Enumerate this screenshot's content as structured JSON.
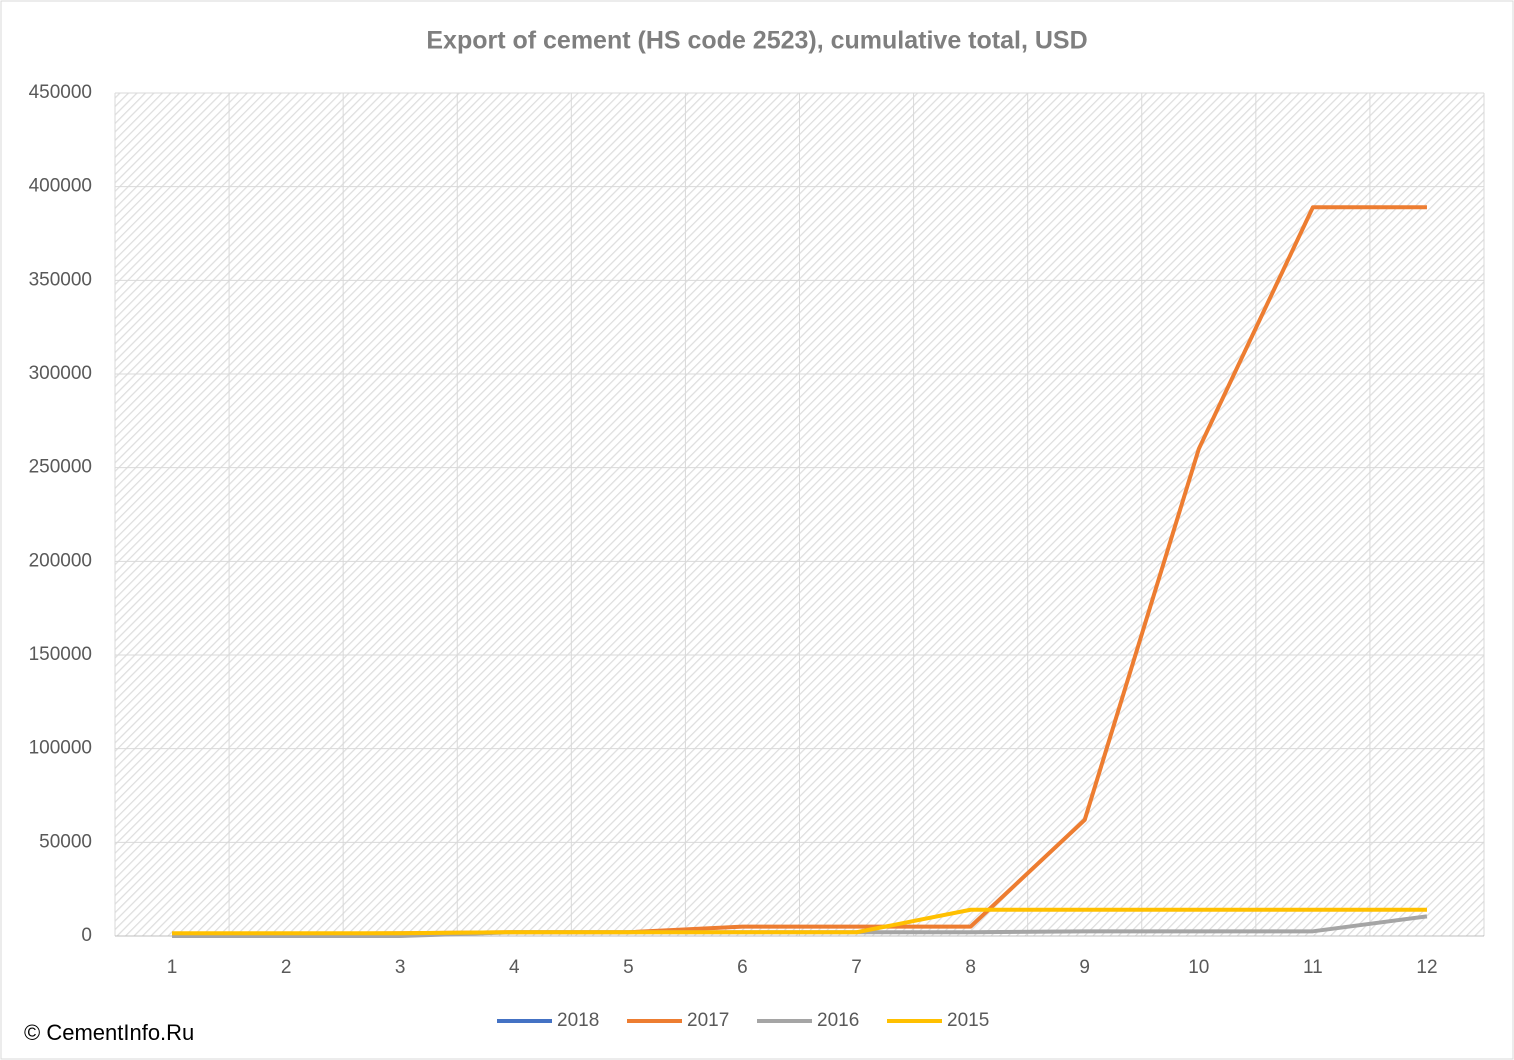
{
  "chart_data": {
    "type": "line",
    "title": "Export of cement (HS code 2523), cumulative total, USD",
    "credit": "© CementInfo.Ru",
    "categories": [
      "1",
      "2",
      "3",
      "4",
      "5",
      "6",
      "7",
      "8",
      "9",
      "10",
      "11",
      "12"
    ],
    "series": [
      {
        "name": "2018",
        "color": "#4472c4",
        "values": [
          null,
          null,
          null,
          null,
          null,
          null,
          null,
          null,
          null,
          null,
          null,
          null
        ]
      },
      {
        "name": "2017",
        "color": "#ed7d31",
        "values": [
          1000,
          1000,
          1500,
          2000,
          2000,
          5000,
          5000,
          5000,
          62000,
          260000,
          389000,
          389000
        ]
      },
      {
        "name": "2016",
        "color": "#a5a5a5",
        "values": [
          0,
          0,
          0,
          2000,
          2000,
          2000,
          2000,
          2000,
          2500,
          2500,
          2500,
          10500
        ]
      },
      {
        "name": "2015",
        "color": "#ffc000",
        "values": [
          1500,
          1500,
          1500,
          2000,
          2000,
          2000,
          2000,
          14000,
          14000,
          14000,
          14000,
          14000
        ]
      }
    ],
    "ylim": [
      0,
      450000
    ],
    "yticks": [
      0,
      50000,
      100000,
      150000,
      200000,
      250000,
      300000,
      350000,
      400000,
      450000
    ],
    "grid": true,
    "legend": "bottom"
  }
}
